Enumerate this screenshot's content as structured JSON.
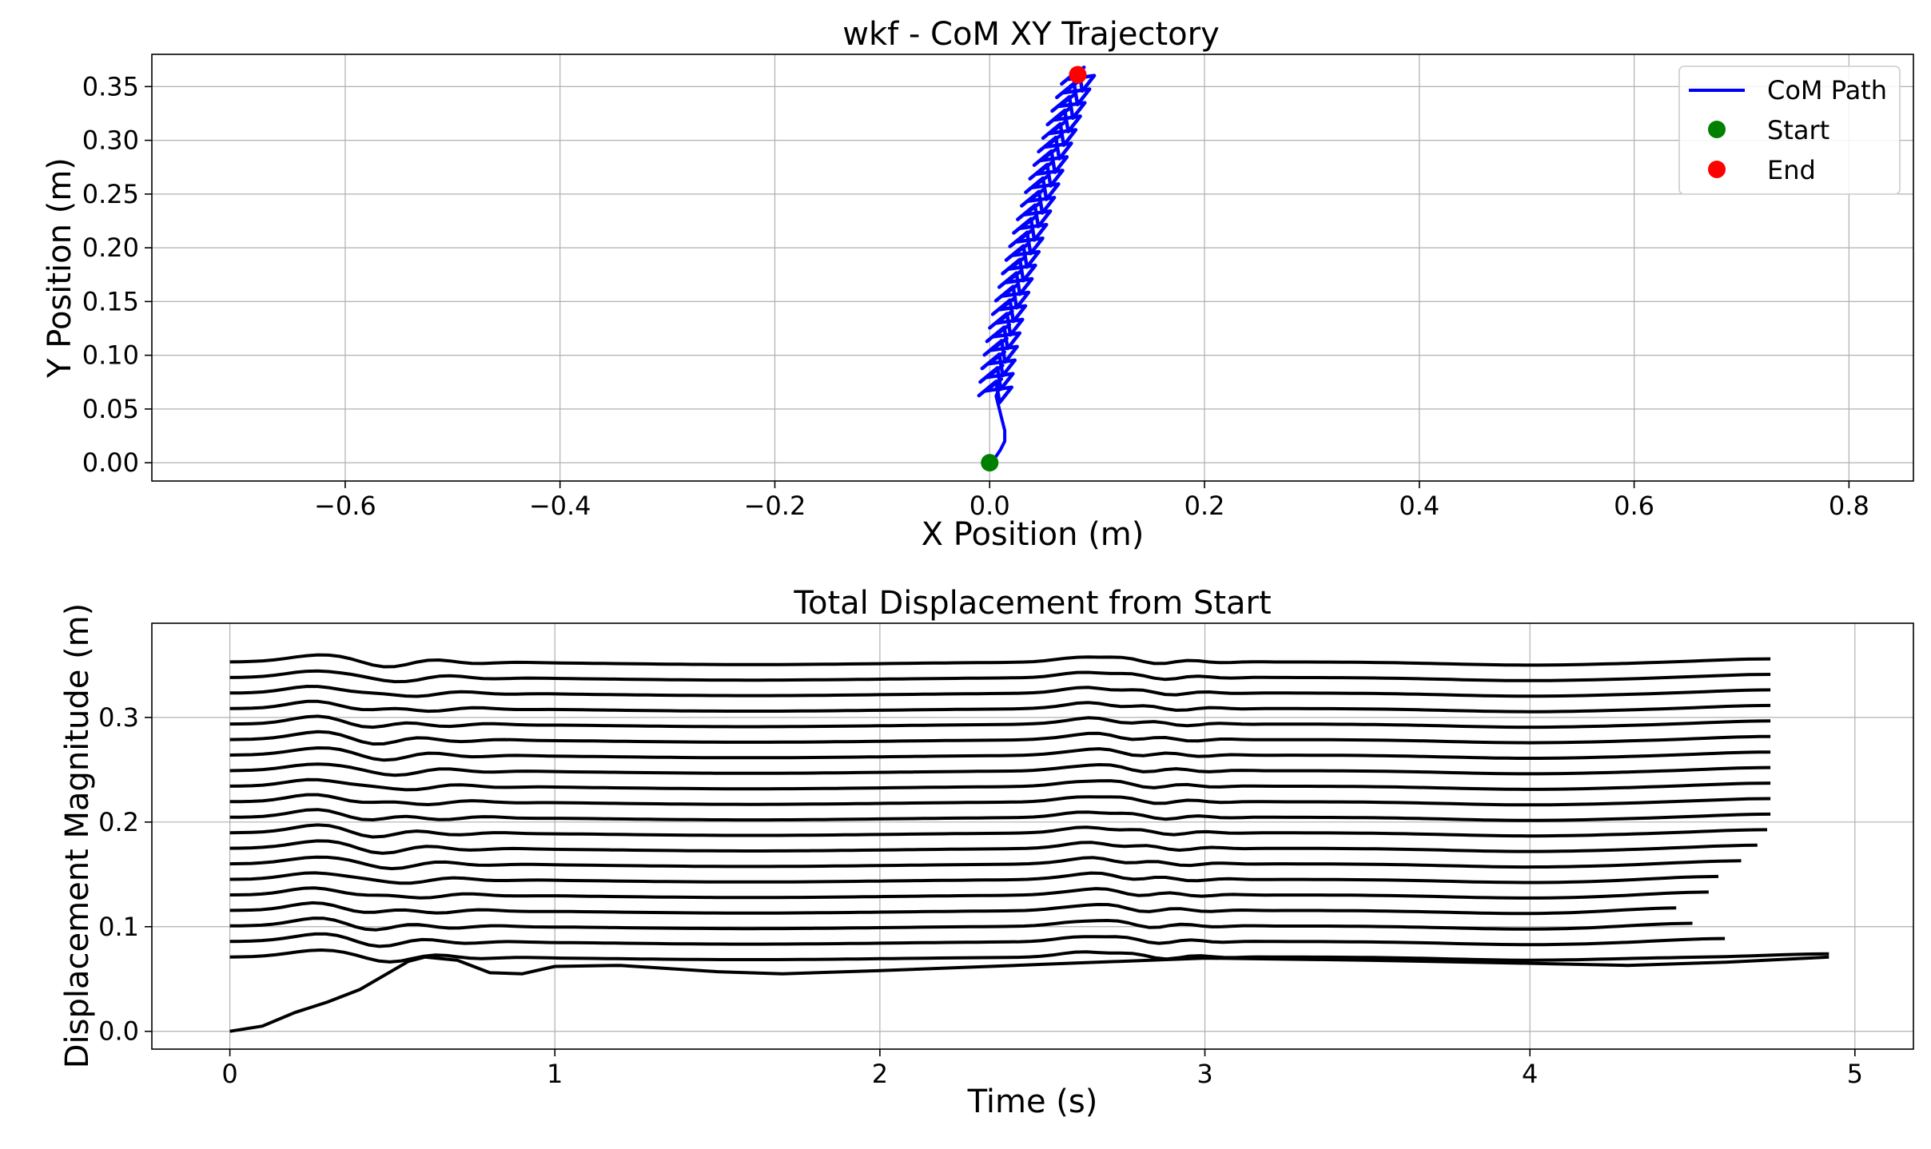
{
  "chart_data": [
    {
      "type": "line",
      "title": "wkf - CoM XY Trajectory",
      "xlabel": "X Position (m)",
      "ylabel": "Y Position (m)",
      "xlim": [
        -0.78,
        0.86
      ],
      "ylim": [
        -0.017,
        0.38
      ],
      "xticks": [
        -0.6,
        -0.4,
        -0.2,
        0.0,
        0.2,
        0.4,
        0.6,
        0.8
      ],
      "xtick_labels": [
        "−0.6",
        "−0.4",
        "−0.2",
        "0.0",
        "0.2",
        "0.4",
        "0.6",
        "0.8"
      ],
      "yticks": [
        0.0,
        0.05,
        0.1,
        0.15,
        0.2,
        0.25,
        0.3,
        0.35
      ],
      "ytick_labels": [
        "0.00",
        "0.05",
        "0.10",
        "0.15",
        "0.20",
        "0.25",
        "0.30",
        "0.35"
      ],
      "grid": true,
      "legend_position": "top-right",
      "series": [
        {
          "name": "CoM Path",
          "color": "#0000ff",
          "style": "line",
          "x": [
            0.0,
            0.006,
            0.01,
            0.014,
            0.014,
            0.011,
            0.008,
            0.006,
            0.008,
            0.011
          ],
          "y": [
            0.0,
            0.006,
            0.012,
            0.02,
            0.03,
            0.042,
            0.054,
            0.062,
            0.067,
            0.07
          ]
        },
        {
          "name": "Start",
          "color": "#008000",
          "style": "marker",
          "x": [
            0.0
          ],
          "y": [
            0.0
          ]
        },
        {
          "name": "End",
          "color": "#ff0000",
          "style": "marker",
          "x": [
            0.082
          ],
          "y": [
            0.361
          ]
        }
      ],
      "steps": {
        "count": 24,
        "y_start": 0.068,
        "y_end": 0.358,
        "x_center_start": 0.006,
        "x_center_end": 0.083,
        "x_center_curve": 0.55,
        "arm_dx": 0.016,
        "arm_dy": 0.022
      }
    },
    {
      "type": "line",
      "title": "Total Displacement from Start",
      "xlabel": "Time (s)",
      "ylabel": "Displacement Magnitude (m)",
      "xlim": [
        -0.24,
        5.18
      ],
      "ylim": [
        -0.017,
        0.39
      ],
      "xticks": [
        0,
        1,
        2,
        3,
        4,
        5
      ],
      "xtick_labels": [
        "0",
        "1",
        "2",
        "3",
        "4",
        "5"
      ],
      "yticks": [
        0.0,
        0.1,
        0.2,
        0.3
      ],
      "ytick_labels": [
        "0.0",
        "0.1",
        "0.2",
        "0.3"
      ],
      "grid": true,
      "series": [
        {
          "name": "",
          "color": "#000000",
          "x": [
            0.0,
            0.1,
            0.2,
            0.3,
            0.4,
            0.5,
            0.55,
            0.6,
            0.7,
            0.8,
            0.9,
            1.0,
            1.2,
            1.5,
            1.7,
            2.0,
            2.5,
            3.0,
            3.5,
            4.0,
            4.3,
            4.6,
            4.92
          ],
          "y": [
            0.0,
            0.005,
            0.018,
            0.028,
            0.04,
            0.058,
            0.067,
            0.071,
            0.068,
            0.056,
            0.055,
            0.062,
            0.063,
            0.057,
            0.055,
            0.058,
            0.064,
            0.07,
            0.068,
            0.065,
            0.063,
            0.066,
            0.071
          ]
        }
      ],
      "bands": {
        "count": 20,
        "y_start": 0.071,
        "y_end": 0.353,
        "t_start": 0.0,
        "t_end": [
          4.92,
          4.6,
          4.5,
          4.45,
          4.55,
          4.58,
          4.65,
          4.7,
          4.73,
          4.74,
          4.74,
          4.74,
          4.74,
          4.74,
          4.74,
          4.74,
          4.74,
          4.74,
          4.74,
          4.74
        ],
        "ripple": 0.005
      }
    }
  ]
}
